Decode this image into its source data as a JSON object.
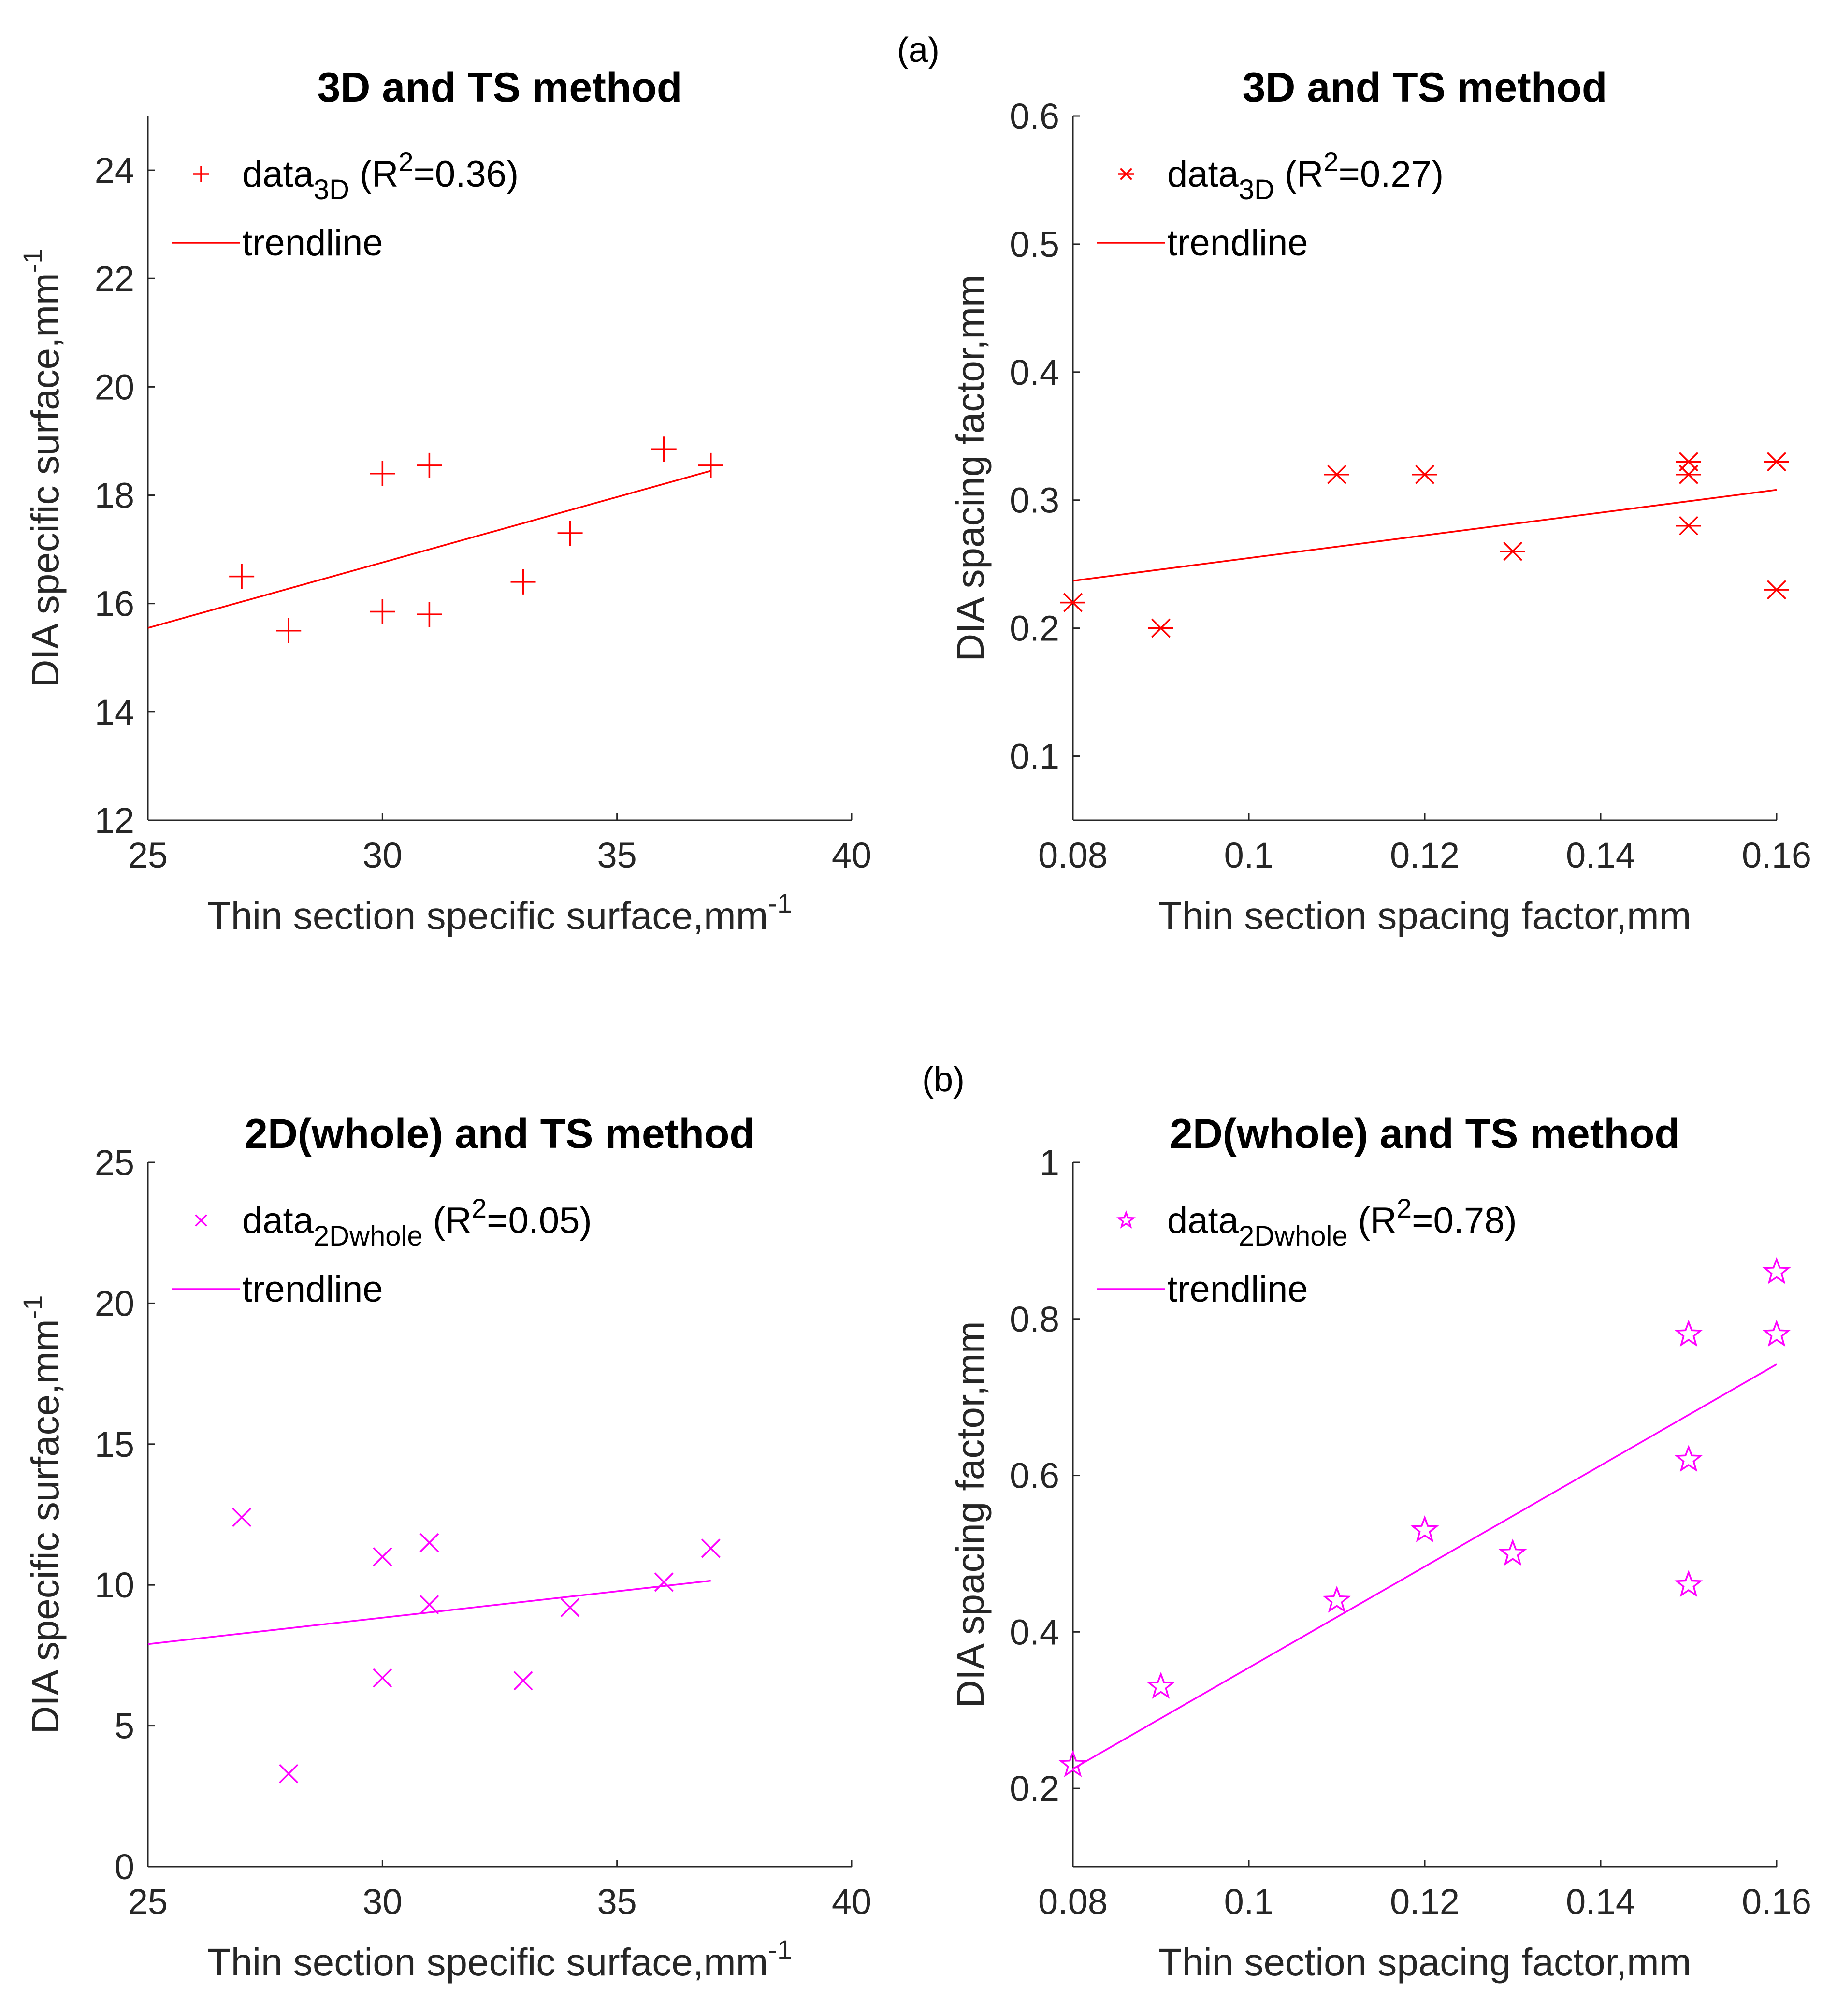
{
  "figure": {
    "label_a": "(a)",
    "label_b": "(b)"
  },
  "chart_data": [
    {
      "type": "scatter",
      "title": "3D and TS method",
      "xlabel": "Thin section specific surface,mm",
      "xlabel_sup": "-1",
      "ylabel": "DIA specific surface,mm",
      "ylabel_sup": "-1",
      "xlim": [
        25,
        40
      ],
      "ylim": [
        12,
        25
      ],
      "xticks": [
        25,
        30,
        35,
        40
      ],
      "yticks": [
        12,
        14,
        16,
        18,
        20,
        22,
        24
      ],
      "color": "#ff0000",
      "marker": "plus",
      "legend": {
        "position": "top-left",
        "data_main": "data",
        "data_sub": "3D",
        "data_r2_open": " (R",
        "data_r2_sup": "2",
        "data_r2_value": "=0.36)",
        "trend_label": "trendline"
      },
      "points": [
        [
          27,
          16.5
        ],
        [
          28,
          15.5
        ],
        [
          30,
          18.4
        ],
        [
          30,
          15.85
        ],
        [
          31,
          18.55
        ],
        [
          31,
          15.8
        ],
        [
          33,
          16.4
        ],
        [
          34,
          17.3
        ],
        [
          36,
          18.85
        ],
        [
          37,
          18.55
        ]
      ],
      "trendline": [
        [
          25,
          15.55
        ],
        [
          37,
          18.45
        ]
      ]
    },
    {
      "type": "scatter",
      "title": "3D and TS method",
      "xlabel": "Thin section spacing factor,mm",
      "ylabel": "DIA spacing factor,mm",
      "xlim": [
        0.08,
        0.16
      ],
      "ylim": [
        0.05,
        0.6
      ],
      "xticks": [
        "0.08",
        "0.1",
        "0.12",
        "0.14",
        "0.16"
      ],
      "yticks": [
        "0.1",
        "0.2",
        "0.3",
        "0.4",
        "0.5",
        "0.6"
      ],
      "color": "#ff0000",
      "marker": "asterisk",
      "legend": {
        "position": "top-left",
        "data_main": "data",
        "data_sub": "3D",
        "data_r2_open": " (R",
        "data_r2_sup": "2",
        "data_r2_value": "=0.27)",
        "trend_label": "trendline"
      },
      "points": [
        [
          0.08,
          0.22
        ],
        [
          0.09,
          0.2
        ],
        [
          0.11,
          0.32
        ],
        [
          0.12,
          0.32
        ],
        [
          0.13,
          0.26
        ],
        [
          0.15,
          0.33
        ],
        [
          0.15,
          0.32
        ],
        [
          0.15,
          0.28
        ],
        [
          0.16,
          0.33
        ],
        [
          0.16,
          0.23
        ]
      ],
      "trendline": [
        [
          0.08,
          0.237
        ],
        [
          0.16,
          0.308
        ]
      ]
    },
    {
      "type": "scatter",
      "title": "2D(whole) and TS method",
      "xlabel": "Thin section specific surface,mm",
      "xlabel_sup": "-1",
      "ylabel": "DIA specific surface,mm",
      "ylabel_sup": "-1",
      "xlim": [
        25,
        40
      ],
      "ylim": [
        0,
        25
      ],
      "xticks": [
        25,
        30,
        35,
        40
      ],
      "yticks": [
        0,
        5,
        10,
        15,
        20,
        25
      ],
      "color": "#ff00ff",
      "marker": "x",
      "legend": {
        "position": "top-left",
        "data_main": "data",
        "data_sub": "2Dwhole",
        "data_r2_open": " (R",
        "data_r2_sup": "2",
        "data_r2_value": "=0.05)",
        "trend_label": "trendline"
      },
      "points": [
        [
          27,
          12.4
        ],
        [
          28,
          3.3
        ],
        [
          30,
          11.0
        ],
        [
          30,
          6.7
        ],
        [
          31,
          11.5
        ],
        [
          31,
          9.3
        ],
        [
          33,
          6.6
        ],
        [
          34,
          9.2
        ],
        [
          36,
          10.1
        ],
        [
          37,
          11.3
        ]
      ],
      "trendline": [
        [
          25,
          7.9
        ],
        [
          37,
          10.15
        ]
      ]
    },
    {
      "type": "scatter",
      "title": "2D(whole) and TS method",
      "xlabel": "Thin section spacing factor,mm",
      "ylabel": "DIA spacing factor,mm",
      "xlim": [
        0.08,
        0.16
      ],
      "ylim": [
        0.1,
        1.0
      ],
      "xticks": [
        "0.08",
        "0.1",
        "0.12",
        "0.14",
        "0.16"
      ],
      "yticks": [
        "0.2",
        "0.4",
        "0.6",
        "0.8",
        "1"
      ],
      "color": "#ff00ff",
      "marker": "star",
      "legend": {
        "position": "top-left",
        "data_main": "data",
        "data_sub": "2Dwhole",
        "data_r2_open": " (R",
        "data_r2_sup": "2",
        "data_r2_value": "=0.78)",
        "trend_label": "trendline"
      },
      "points": [
        [
          0.08,
          0.23
        ],
        [
          0.09,
          0.33
        ],
        [
          0.11,
          0.44
        ],
        [
          0.12,
          0.53
        ],
        [
          0.13,
          0.5
        ],
        [
          0.15,
          0.78
        ],
        [
          0.15,
          0.62
        ],
        [
          0.15,
          0.46
        ],
        [
          0.16,
          0.86
        ],
        [
          0.16,
          0.78
        ]
      ],
      "trendline": [
        [
          0.08,
          0.225
        ],
        [
          0.16,
          0.742
        ]
      ]
    }
  ]
}
